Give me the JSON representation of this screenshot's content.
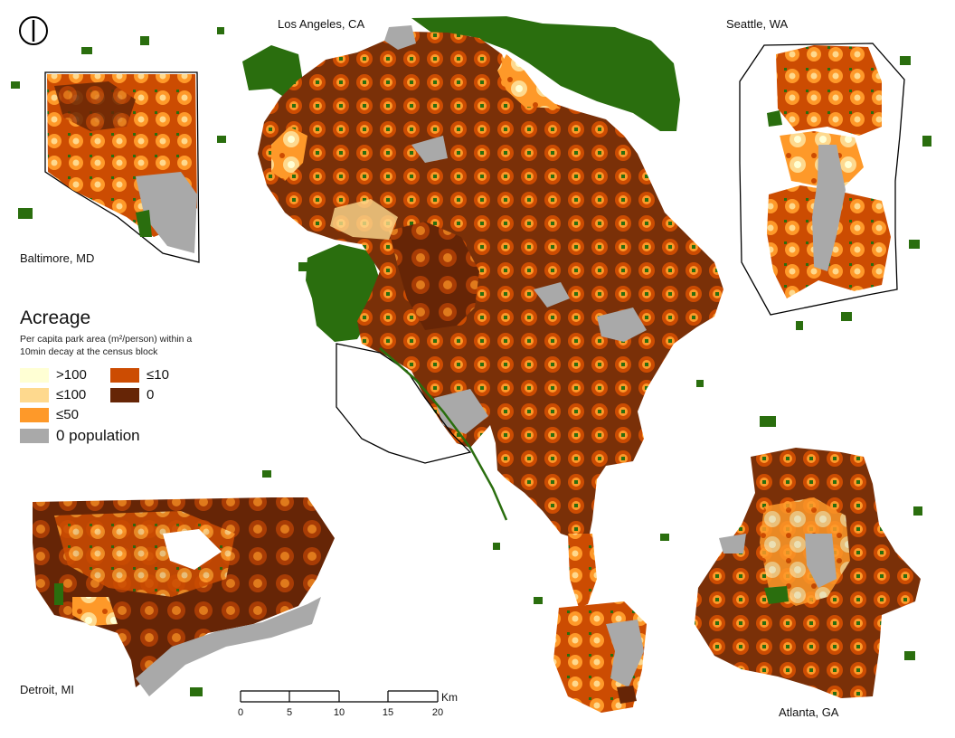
{
  "maps": {
    "los_angeles": "Los Angeles, CA",
    "seattle": "Seattle, WA",
    "baltimore": "Baltimore, MD",
    "detroit": "Detroit, MI",
    "atlanta": "Atlanta, GA"
  },
  "legend": {
    "title": "Acreage",
    "subtitle": "Per capita park area (m²/person) within a 10min decay at the census block",
    "classes": [
      {
        "label": ">100",
        "color": "#ffffd4"
      },
      {
        "label": "≤10",
        "color": "#cc4c02"
      },
      {
        "label": "≤100",
        "color": "#fed98e"
      },
      {
        "label": "0",
        "color": "#662506"
      },
      {
        "label": "≤50",
        "color": "#fe9929"
      },
      {
        "label": "0 population",
        "color": "#a9a9a9"
      }
    ]
  },
  "park_color": "#2a6e0e",
  "scale": {
    "unit": "Km",
    "ticks": [
      "0",
      "5",
      "10",
      "15",
      "20"
    ]
  },
  "icons": {
    "north_arrow": "north-arrow-icon"
  }
}
